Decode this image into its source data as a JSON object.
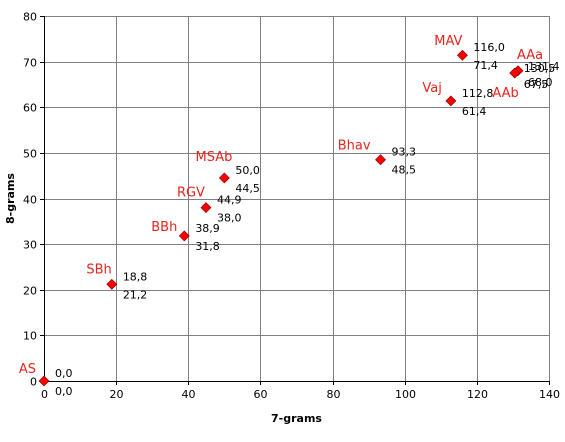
{
  "chart_data": {
    "type": "scatter",
    "xlabel": "7-grams",
    "ylabel": "8-grams",
    "xlim": [
      0,
      140
    ],
    "ylim": [
      0,
      80
    ],
    "x_ticks": [
      0,
      20,
      40,
      60,
      80,
      100,
      120,
      140
    ],
    "y_ticks": [
      0,
      10,
      20,
      30,
      40,
      50,
      60,
      70,
      80
    ],
    "grid": true,
    "legend": "none",
    "marker": "diamond",
    "marker_color": "#ff0000",
    "name_color": "#e8241c",
    "points": [
      {
        "name": "AS",
        "x": 0.0,
        "y": 0.0,
        "x_label": "0,0",
        "y_label": "0,0"
      },
      {
        "name": "SBh",
        "x": 18.8,
        "y": 21.2,
        "x_label": "18,8",
        "y_label": "21,2"
      },
      {
        "name": "BBh",
        "x": 38.9,
        "y": 31.8,
        "x_label": "38,9",
        "y_label": "31,8"
      },
      {
        "name": "RGV",
        "x": 44.9,
        "y": 38.0,
        "x_label": "44,9",
        "y_label": "38,0"
      },
      {
        "name": "MSAb",
        "x": 50.0,
        "y": 44.5,
        "x_label": "50,0",
        "y_label": "44,5"
      },
      {
        "name": "Bhav",
        "x": 93.3,
        "y": 48.5,
        "x_label": "93,3",
        "y_label": "48,5"
      },
      {
        "name": "Vaj",
        "x": 112.8,
        "y": 61.4,
        "x_label": "112,8",
        "y_label": "61,4"
      },
      {
        "name": "MAV",
        "x": 116.0,
        "y": 71.4,
        "x_label": "116,0",
        "y_label": "71,4"
      },
      {
        "name": "AAa",
        "x": 131.4,
        "y": 68.0,
        "x_label": "131,4",
        "y_label": "68,0"
      },
      {
        "name": "AAb",
        "x": 130.5,
        "y": 67.5,
        "x_label": "130,5",
        "y_label": "67,5"
      }
    ]
  }
}
